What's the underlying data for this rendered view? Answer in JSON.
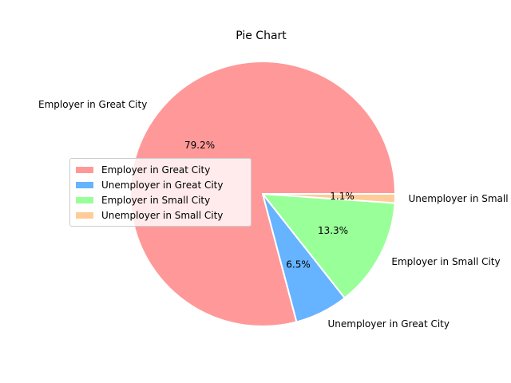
{
  "chart_data": {
    "type": "pie",
    "title": "Pie Chart",
    "slices": [
      {
        "label": "Employer in Great City",
        "value": 79.2,
        "pct_label": "79.2%",
        "color": "#ff9999"
      },
      {
        "label": "Unemployer in Great City",
        "value": 6.5,
        "pct_label": "6.5%",
        "color": "#66b3ff"
      },
      {
        "label": "Employer in Small City",
        "value": 13.3,
        "pct_label": "13.3%",
        "color": "#99ff99"
      },
      {
        "label": "Unemployer in Small City",
        "value": 1.1,
        "pct_label": "1.1%",
        "color": "#ffcc99"
      }
    ],
    "start_angle_deg": 0,
    "direction": "counterclockwise",
    "legend": {
      "placement": "center-left"
    }
  }
}
